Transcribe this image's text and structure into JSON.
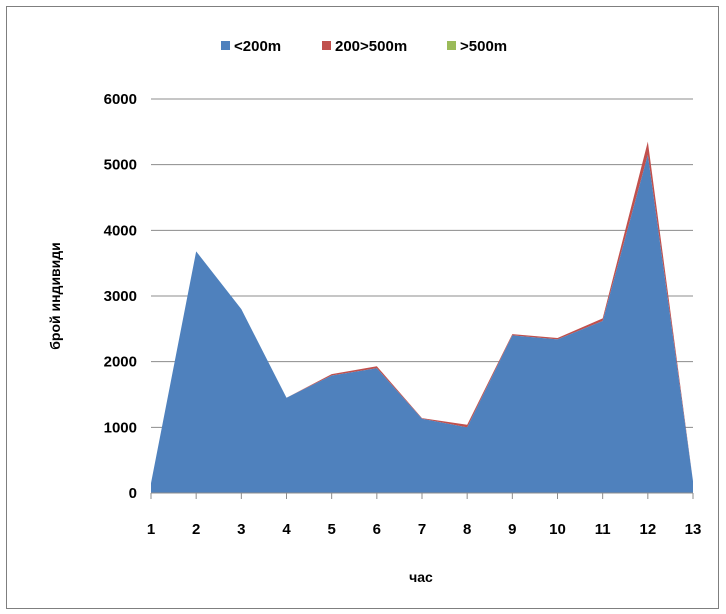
{
  "chart_data": {
    "type": "area",
    "stacked": true,
    "x": [
      "1",
      "2",
      "3",
      "4",
      "5",
      "6",
      "7",
      "8",
      "9",
      "10",
      "11",
      "12",
      "13"
    ],
    "series": [
      {
        "name": "<200m",
        "color": "#4f81bd",
        "values": [
          150,
          3680,
          2800,
          1450,
          1790,
          1900,
          1130,
          1000,
          2400,
          2340,
          2620,
          5150,
          180
        ]
      },
      {
        "name": "200>500m",
        "color": "#c0504d",
        "values": [
          0,
          0,
          0,
          0,
          20,
          30,
          10,
          40,
          20,
          20,
          40,
          200,
          0
        ]
      },
      {
        "name": ">500m",
        "color": "#9bbb59",
        "values": [
          0,
          0,
          0,
          0,
          0,
          0,
          0,
          0,
          0,
          0,
          0,
          0,
          0
        ]
      }
    ],
    "ylim": [
      0,
      6000
    ],
    "yticks": [
      "0",
      "1000",
      "2000",
      "3000",
      "4000",
      "5000",
      "6000"
    ],
    "ylabel": "брой индивиди",
    "xlabel": "час",
    "legend_position": "top",
    "grid": true
  }
}
